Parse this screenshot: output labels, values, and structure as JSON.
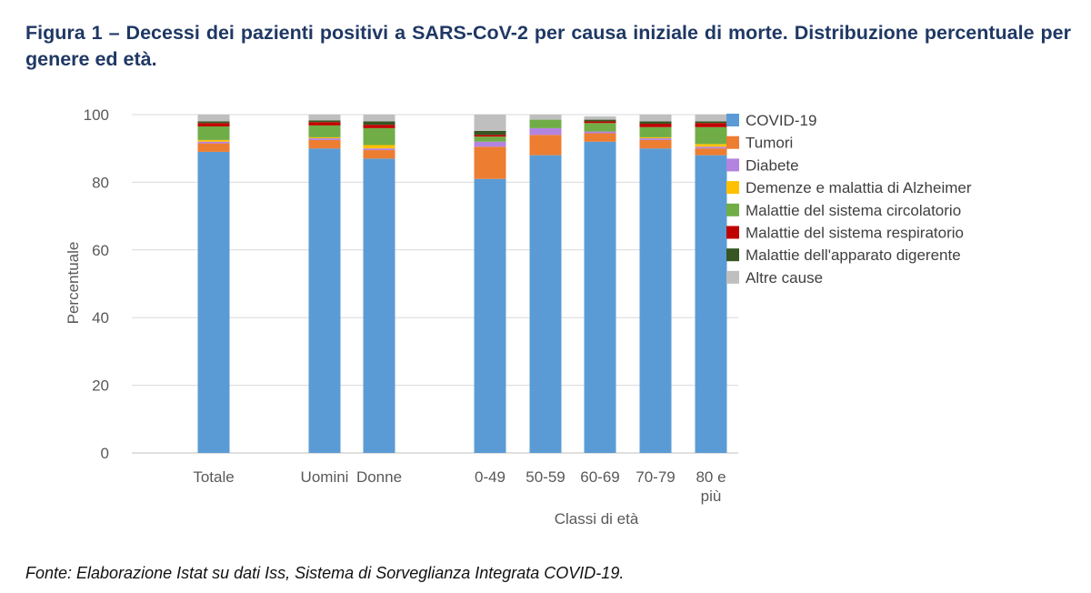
{
  "header": {
    "title": "Figura 1 – Decessi dei pazienti positivi a SARS-CoV-2 per causa iniziale di morte. Distribuzione percentuale per genere ed età."
  },
  "footer": {
    "source": "Fonte: Elaborazione Istat su dati Iss, Sistema di Sorveglianza Integrata COVID-19."
  },
  "chart_data": {
    "type": "bar",
    "stacked": true,
    "ylabel": "Percentuale",
    "xlabel": "Classi di età",
    "ylim": [
      0,
      100
    ],
    "yticks": [
      0,
      20,
      40,
      60,
      80,
      100
    ],
    "grid": true,
    "legend_position": "right",
    "categories": [
      [
        "Totale"
      ],
      [
        "Uomini"
      ],
      [
        "Donne"
      ],
      [
        "0-49"
      ],
      [
        "50-59"
      ],
      [
        "60-69"
      ],
      [
        "70-79"
      ],
      [
        "80 e",
        "più"
      ]
    ],
    "series": [
      {
        "name": "COVID-19",
        "color": "#5b9bd5",
        "values": [
          89.0,
          90.0,
          87.0,
          81.0,
          88.0,
          92.0,
          90.0,
          88.0
        ]
      },
      {
        "name": "Tumori",
        "color": "#ed7d31",
        "values": [
          2.5,
          2.5,
          2.5,
          9.5,
          6.0,
          2.5,
          2.5,
          2.0
        ]
      },
      {
        "name": "Diabete",
        "color": "#b383e0",
        "values": [
          0.5,
          0.5,
          0.5,
          1.5,
          2.0,
          0.5,
          0.5,
          0.5
        ]
      },
      {
        "name": "Demenze e malattia di Alzheimer",
        "color": "#ffc000",
        "values": [
          0.5,
          0.3,
          1.0,
          0.0,
          0.0,
          0.0,
          0.3,
          0.8
        ]
      },
      {
        "name": "Malattie del sistema circolatorio",
        "color": "#70ad47",
        "values": [
          4.0,
          3.5,
          5.0,
          1.5,
          2.5,
          2.5,
          3.0,
          5.0
        ]
      },
      {
        "name": "Malattie del sistema respiratorio",
        "color": "#c00000",
        "values": [
          1.0,
          1.0,
          1.0,
          0.5,
          0.0,
          0.5,
          1.0,
          1.2
        ]
      },
      {
        "name": "Malattie dell'apparato digerente",
        "color": "#375623",
        "values": [
          0.5,
          0.5,
          1.0,
          1.2,
          0.0,
          0.5,
          0.7,
          0.5
        ]
      },
      {
        "name": "Altre cause",
        "color": "#bfbfbf",
        "values": [
          2.0,
          1.7,
          2.0,
          4.8,
          1.5,
          1.0,
          2.0,
          2.0
        ]
      }
    ]
  }
}
